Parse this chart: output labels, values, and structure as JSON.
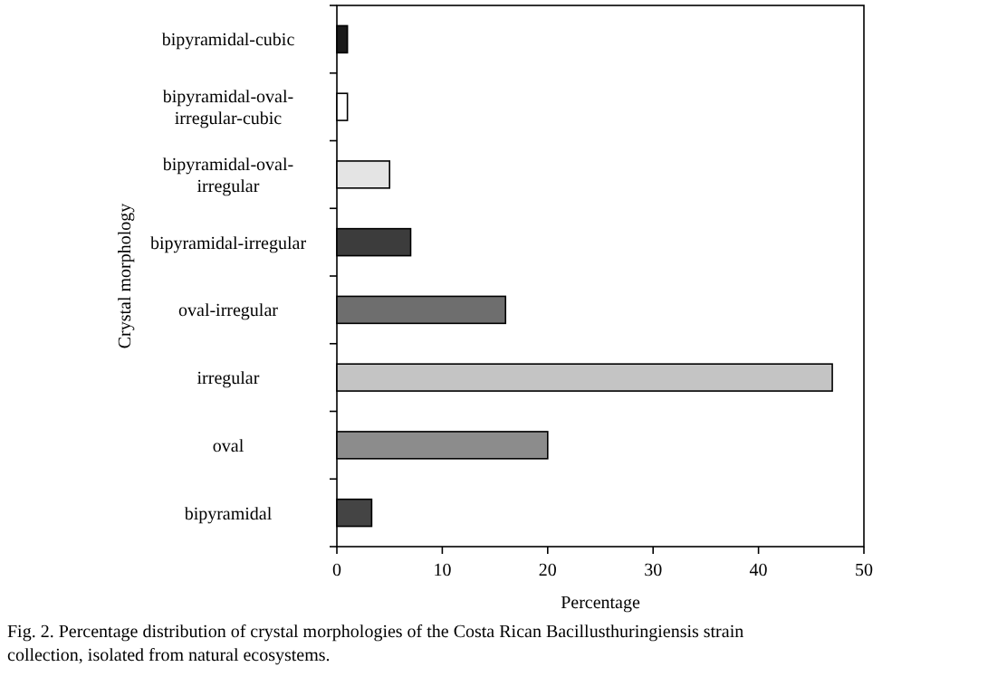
{
  "chart_data": {
    "type": "bar",
    "orientation": "horizontal",
    "ylabel": "Crystal morphology",
    "xlabel": "Percentage",
    "categories": [
      "bipyramidal-cubic",
      "bipyramidal-oval-irregular-cubic",
      "bipyramidal-oval-irregular",
      "bipyramidal-irregular",
      "oval-irregular",
      "irregular",
      "oval",
      "bipyramidal"
    ],
    "values": [
      1,
      1,
      5,
      7,
      16,
      47,
      20,
      3.3
    ],
    "colors": [
      "#1a1a1a",
      "#ffffff",
      "#e4e4e4",
      "#3c3c3c",
      "#6e6e6e",
      "#c4c4c4",
      "#8c8c8c",
      "#444444"
    ],
    "xlim": [
      0,
      50
    ],
    "xticks": [
      0,
      10,
      20,
      30,
      40,
      50
    ],
    "grid": false,
    "annotations": [
      "Fig. 2. Percentage distribution of crystal morphologies of the Costa Rican Bacillusthuringiensis strain collection, isolated from natural ecosystems."
    ]
  }
}
